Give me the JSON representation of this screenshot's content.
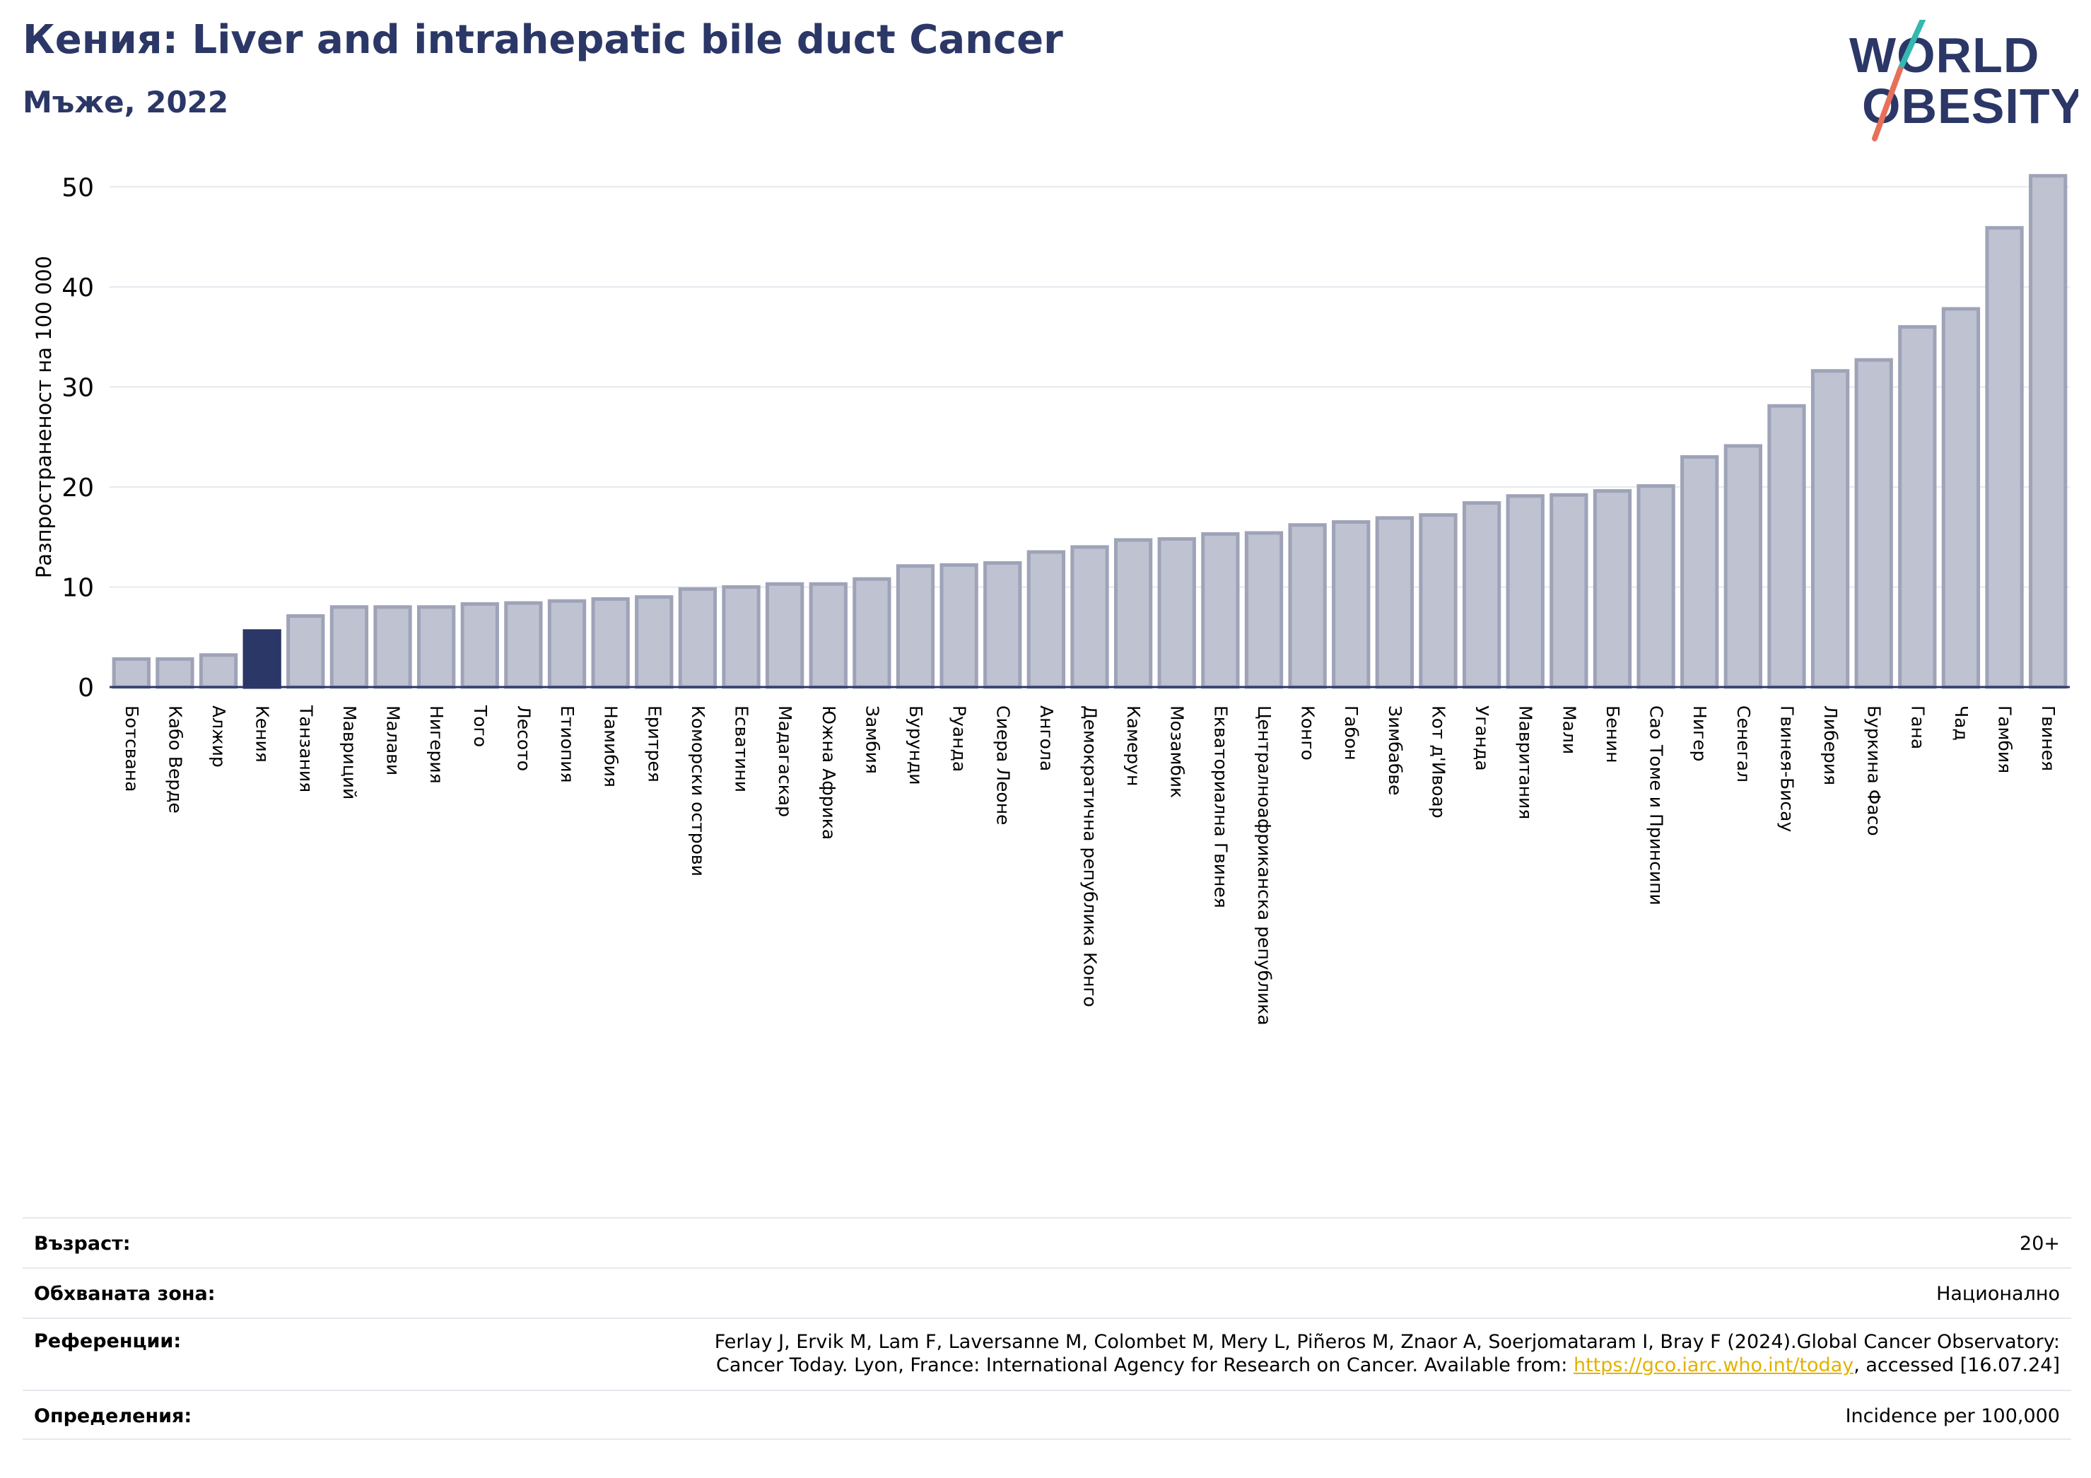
{
  "header": {
    "title": "Кения: Liver and intrahepatic bile duct Cancer",
    "subtitle": "Мъже, 2022"
  },
  "logo": {
    "line1": "WORLD",
    "line2": "OBESITY",
    "text_color": "#2b3766",
    "slash_top_color": "#34b8b0",
    "slash_bottom_color": "#e8705a"
  },
  "chart_data": {
    "type": "bar",
    "title": "",
    "xlabel": "",
    "ylabel": "Разпространеност  на 100 000",
    "ylim": [
      0,
      52
    ],
    "yticks": [
      0,
      10,
      20,
      30,
      40,
      50
    ],
    "grid": true,
    "highlight": "Кения",
    "colors": {
      "bar_fill": "#bfc2d0",
      "bar_edge": "#9ea3b8",
      "highlight_fill": "#2b3766",
      "grid": "#e6e8ef",
      "axis": "#2b3766"
    },
    "categories": [
      "Ботсвана",
      "Кабо Верде",
      "Алжир",
      "Кения",
      "Танзания",
      "Мавриций",
      "Малави",
      "Нигерия",
      "Того",
      "Лесото",
      "Етиопия",
      "Намибия",
      "Еритрея",
      "Коморски острови",
      "Есватини",
      "Мадагаскар",
      "Южна Африка",
      "Замбия",
      "Бурунди",
      "Руанда",
      "Сиера Леоне",
      "Ангола",
      "Демократична република Конго",
      "Камерун",
      "Мозамбик",
      "Екваториална Гвинея",
      "Централноафриканска република",
      "Конго",
      "Габон",
      "Зимбабве",
      "Кот д'Ивоар",
      "Уганда",
      "Мавритания",
      "Мали",
      "Бенин",
      "Сао Томе и Принсипи",
      "Нигер",
      "Сенегал",
      "Гвинея-Бисау",
      "Либерия",
      "Буркина Фасо",
      "Гана",
      "Чад",
      "Гамбия",
      "Гвинея"
    ],
    "values": [
      2.8,
      2.8,
      3.2,
      5.6,
      7.1,
      8.0,
      8.0,
      8.0,
      8.3,
      8.4,
      8.6,
      8.8,
      9.0,
      9.8,
      10.0,
      10.3,
      10.3,
      10.8,
      12.1,
      12.2,
      12.4,
      13.5,
      14.0,
      14.7,
      14.8,
      15.3,
      15.4,
      16.2,
      16.5,
      16.9,
      17.2,
      18.4,
      19.1,
      19.2,
      19.6,
      20.1,
      23.0,
      24.1,
      28.1,
      31.6,
      32.7,
      36.0,
      37.8,
      45.9,
      51.1
    ]
  },
  "info": {
    "age_label": "Възраст:",
    "age_value": "20+",
    "area_label": "Обхваната зона:",
    "area_value": "Национално",
    "ref_label": "Референции:",
    "ref_line1": "Ferlay J, Ervik M, Lam F, Laversanne M, Colombet M, Mery L, Piñeros M, Znaor A, Soerjomataram I, Bray F (2024).Global Cancer Observatory:",
    "ref_line2_prefix": "Cancer Today. Lyon, France: International Agency for Research on Cancer. Available from: ",
    "ref_link": "https://gco.iarc.who.int/today",
    "ref_line2_suffix": ", accessed [16.07.24]",
    "def_label": "Определения:",
    "def_value": "Incidence per 100,000"
  }
}
